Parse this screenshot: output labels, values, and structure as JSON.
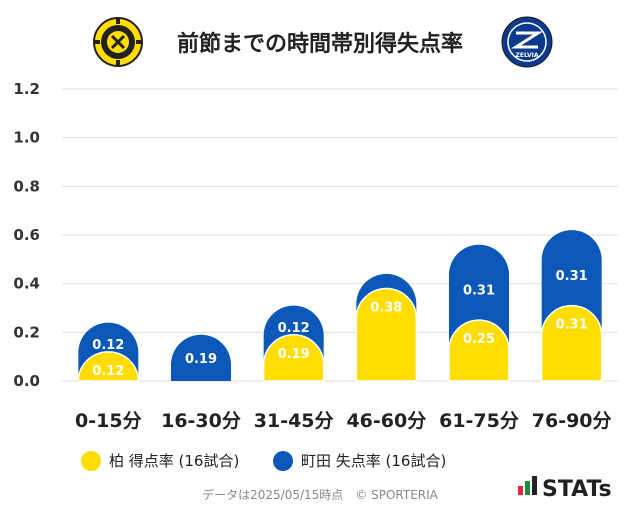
{
  "title": "前節までの時間帯別得失点率",
  "chart_data": {
    "type": "bar",
    "categories": [
      "0-15分",
      "16-30分",
      "31-45分",
      "46-60分",
      "61-75分",
      "76-90分"
    ],
    "series": [
      {
        "name": "柏 得点率 (16試合)",
        "color": "#FFDD00",
        "values": [
          0.12,
          0,
          0.19,
          0.38,
          0.25,
          0.31
        ],
        "labels": [
          "0.12",
          "",
          "0.19",
          "0.38",
          "0.25",
          "0.31"
        ]
      },
      {
        "name": "町田 失点率 (16試合)",
        "color": "#0B58B8",
        "values": [
          0.12,
          0.19,
          0.12,
          0.06,
          0.31,
          0.31
        ],
        "labels": [
          "0.12",
          "0.19",
          "0.12",
          "",
          "0.31",
          "0.31"
        ]
      }
    ],
    "yticks": [
      "1.2",
      "1.0",
      "0.8",
      "0.6",
      "0.4",
      "0.2",
      "0.0"
    ],
    "ylim": [
      0,
      1.2
    ],
    "grid": true,
    "legend_position": "bottom",
    "stacked": true
  },
  "footer": "データは2025/05/15時点　© SPORTERIA",
  "brand": "STATs",
  "logos": {
    "left": {
      "icon": "kashiwa-reysol-emblem-icon",
      "text": "KASHIWA REYSOL"
    },
    "right": {
      "icon": "machida-zelvia-emblem-icon",
      "text": "ZELVIA"
    }
  }
}
